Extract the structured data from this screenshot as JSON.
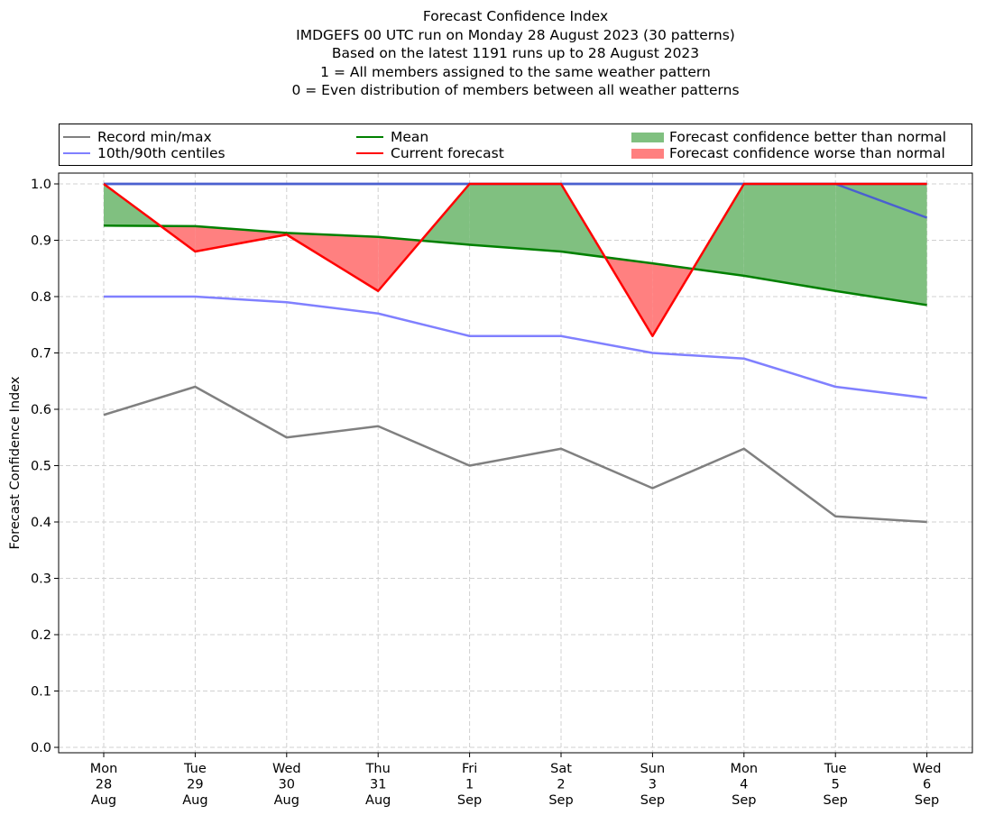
{
  "title_lines": [
    "Forecast Confidence Index",
    "IMDGEFS 00 UTC run on Monday 28 August 2023 (30 patterns)",
    "Based on the latest 1191 runs up to 28 August 2023",
    "1 = All members assigned to the same weather pattern",
    "0 = Even distribution of members between all weather patterns"
  ],
  "legend": {
    "record": "Record min/max",
    "centiles": "10th/90th centiles",
    "mean": "Mean",
    "current": "Current forecast",
    "better": "Forecast confidence better than normal",
    "worse": "Forecast confidence worse than normal"
  },
  "colors": {
    "record": "#808080",
    "centiles": "#8080ff",
    "mean": "#008000",
    "current": "#ff0000",
    "better": "#80c080",
    "worse": "#ff8080",
    "record_max": "#3a3ab0",
    "centile_90": "#4a60d0"
  },
  "chart_data": {
    "type": "line",
    "ylabel": "Forecast Confidence Index",
    "ylim": [
      0,
      1
    ],
    "yticks": [
      "0.0",
      "0.1",
      "0.2",
      "0.3",
      "0.4",
      "0.5",
      "0.6",
      "0.7",
      "0.8",
      "0.9",
      "1.0"
    ],
    "grid": true,
    "legend_position": "top",
    "x_labels": [
      [
        "Mon",
        "28",
        "Aug"
      ],
      [
        "Tue",
        "29",
        "Aug"
      ],
      [
        "Wed",
        "30",
        "Aug"
      ],
      [
        "Thu",
        "31",
        "Aug"
      ],
      [
        "Fri",
        "1",
        "Sep"
      ],
      [
        "Sat",
        "2",
        "Sep"
      ],
      [
        "Sun",
        "3",
        "Sep"
      ],
      [
        "Mon",
        "4",
        "Sep"
      ],
      [
        "Tue",
        "5",
        "Sep"
      ],
      [
        "Wed",
        "6",
        "Sep"
      ]
    ],
    "series": [
      {
        "name": "Record min/max",
        "role": "record_min",
        "values": [
          0.59,
          0.64,
          0.55,
          0.57,
          0.5,
          0.53,
          0.46,
          0.53,
          0.41,
          0.4
        ]
      },
      {
        "name": "Record min/max",
        "role": "record_max",
        "values": [
          1.0,
          1.0,
          1.0,
          1.0,
          1.0,
          1.0,
          1.0,
          1.0,
          1.0,
          1.0
        ]
      },
      {
        "name": "10th/90th centiles",
        "role": "centile_10",
        "values": [
          0.8,
          0.8,
          0.79,
          0.77,
          0.73,
          0.73,
          0.7,
          0.69,
          0.64,
          0.62
        ]
      },
      {
        "name": "10th/90th centiles",
        "role": "centile_90",
        "values": [
          1.0,
          1.0,
          1.0,
          1.0,
          1.0,
          1.0,
          1.0,
          1.0,
          1.0,
          0.94
        ]
      },
      {
        "name": "Mean",
        "role": "mean",
        "values": [
          0.926,
          0.925,
          0.913,
          0.906,
          0.892,
          0.88,
          0.859,
          0.837,
          0.81,
          0.785
        ]
      },
      {
        "name": "Current forecast",
        "role": "current",
        "values": [
          1.0,
          0.88,
          0.91,
          0.81,
          1.0,
          1.0,
          0.73,
          1.0,
          1.0,
          1.0
        ]
      }
    ]
  }
}
